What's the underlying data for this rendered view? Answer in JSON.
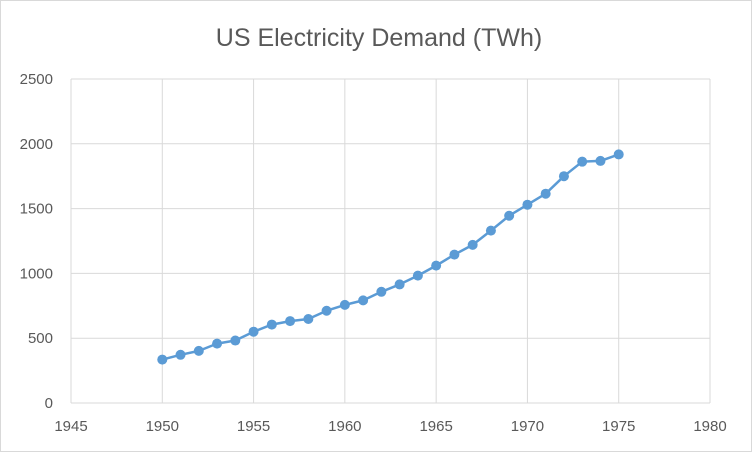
{
  "chart_data": {
    "type": "scatter",
    "title": "US Electricity Demand (TWh)",
    "xlabel": "",
    "ylabel": "",
    "xlim": [
      1945,
      1980
    ],
    "ylim": [
      0,
      2500
    ],
    "x_ticks": [
      1945,
      1950,
      1955,
      1960,
      1965,
      1970,
      1975,
      1980
    ],
    "y_ticks": [
      0,
      500,
      1000,
      1500,
      2000,
      2500
    ],
    "grid": true,
    "legend": "none",
    "series_color": "#5b9bd5",
    "gridline_color": "#d9d9d9",
    "text_color": "#595959",
    "series": [
      {
        "x": [
          1950,
          1951,
          1952,
          1953,
          1954,
          1955,
          1956,
          1957,
          1958,
          1959,
          1960,
          1961,
          1962,
          1963,
          1964,
          1965,
          1966,
          1967,
          1968,
          1969,
          1970,
          1971,
          1972,
          1973,
          1974,
          1975
        ],
        "y": [
          335,
          372,
          402,
          458,
          482,
          550,
          605,
          632,
          648,
          712,
          757,
          792,
          858,
          915,
          983,
          1060,
          1145,
          1220,
          1330,
          1445,
          1530,
          1615,
          1750,
          1862,
          1868,
          1918
        ]
      }
    ]
  }
}
